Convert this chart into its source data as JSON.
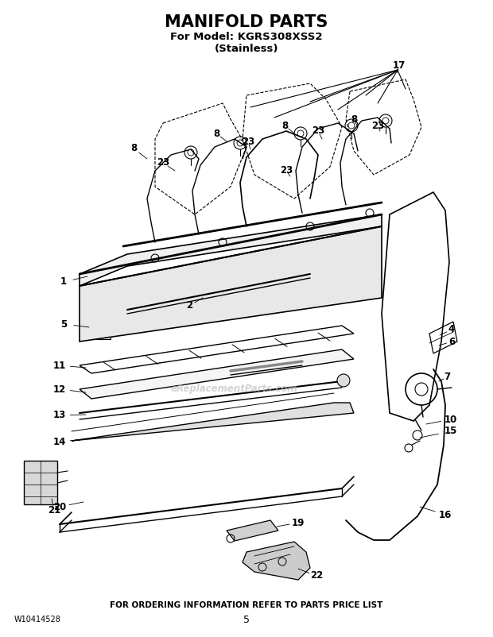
{
  "title": "MANIFOLD PARTS",
  "subtitle1": "For Model: KGRS308XSS2",
  "subtitle2": "(Stainless)",
  "footer_text": "FOR ORDERING INFORMATION REFER TO PARTS PRICE LIST",
  "doc_number": "W10414528",
  "page_number": "5",
  "watermark": "eReplacementParts.com",
  "bg_color": "#ffffff",
  "title_fontsize": 15,
  "subtitle_fontsize": 9.5,
  "footer_fontsize": 7.5
}
